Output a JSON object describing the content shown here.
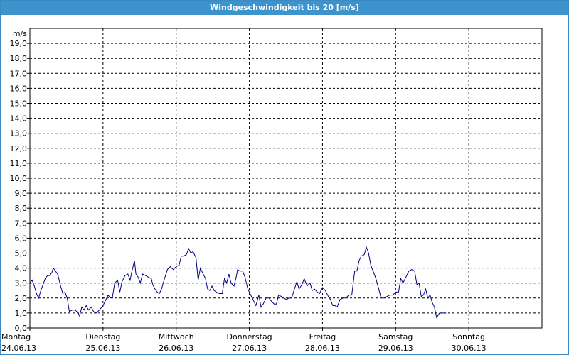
{
  "window": {
    "title": "Windgeschwindigkeit bis 20 [m/s]"
  },
  "chart_data": {
    "type": "line",
    "title": "Windgeschwindigkeit bis 20 [m/s]",
    "ylabel": "m/s",
    "ylim": [
      0,
      20
    ],
    "xlim": [
      0,
      7
    ],
    "grid": true,
    "line_color": "#000080",
    "y_ticks": [
      "0,0",
      "1,0",
      "2,0",
      "3,0",
      "4,0",
      "5,0",
      "6,0",
      "7,0",
      "8,0",
      "9,0",
      "10,0",
      "11,0",
      "12,0",
      "13,0",
      "14,0",
      "15,0",
      "16,0",
      "17,0",
      "18,0",
      "19,0"
    ],
    "x_ticks": [
      {
        "day": "Montag",
        "date": "24.06.13"
      },
      {
        "day": "Dienstag",
        "date": "25.06.13"
      },
      {
        "day": "Mittwoch",
        "date": "26.06.13"
      },
      {
        "day": "Donnerstag",
        "date": "27.06.13"
      },
      {
        "day": "Freitag",
        "date": "28.06.13"
      },
      {
        "day": "Samstag",
        "date": "29.06.13"
      },
      {
        "day": "Sonntag",
        "date": "30.06.13"
      }
    ],
    "series": [
      {
        "points": [
          [
            0.0,
            3.0
          ],
          [
            0.03,
            3.2
          ],
          [
            0.06,
            2.8
          ],
          [
            0.09,
            2.3
          ],
          [
            0.12,
            2.0
          ],
          [
            0.15,
            2.5
          ],
          [
            0.18,
            2.9
          ],
          [
            0.21,
            3.3
          ],
          [
            0.24,
            3.5
          ],
          [
            0.27,
            3.5
          ],
          [
            0.3,
            3.7
          ],
          [
            0.32,
            4.0
          ],
          [
            0.35,
            3.8
          ],
          [
            0.38,
            3.6
          ],
          [
            0.42,
            2.8
          ],
          [
            0.45,
            2.3
          ],
          [
            0.48,
            2.4
          ],
          [
            0.51,
            2.0
          ],
          [
            0.54,
            1.1
          ],
          [
            0.58,
            1.2
          ],
          [
            0.62,
            1.2
          ],
          [
            0.66,
            1.0
          ],
          [
            0.68,
            0.8
          ],
          [
            0.71,
            1.4
          ],
          [
            0.74,
            1.2
          ],
          [
            0.77,
            1.5
          ],
          [
            0.8,
            1.2
          ],
          [
            0.84,
            1.4
          ],
          [
            0.87,
            1.1
          ],
          [
            0.91,
            1.0
          ],
          [
            0.95,
            1.2
          ],
          [
            1.0,
            1.5
          ],
          [
            1.04,
            1.9
          ],
          [
            1.07,
            2.2
          ],
          [
            1.1,
            2.0
          ],
          [
            1.13,
            2.1
          ],
          [
            1.16,
            3.0
          ],
          [
            1.2,
            3.2
          ],
          [
            1.23,
            2.4
          ],
          [
            1.26,
            3.1
          ],
          [
            1.3,
            3.5
          ],
          [
            1.34,
            3.6
          ],
          [
            1.37,
            3.2
          ],
          [
            1.4,
            3.9
          ],
          [
            1.43,
            4.5
          ],
          [
            1.45,
            3.6
          ],
          [
            1.48,
            3.4
          ],
          [
            1.51,
            3.0
          ],
          [
            1.54,
            3.6
          ],
          [
            1.58,
            3.5
          ],
          [
            1.62,
            3.4
          ],
          [
            1.66,
            3.3
          ],
          [
            1.68,
            2.9
          ],
          [
            1.71,
            2.6
          ],
          [
            1.74,
            2.4
          ],
          [
            1.77,
            2.3
          ],
          [
            1.8,
            2.6
          ],
          [
            1.84,
            3.3
          ],
          [
            1.88,
            3.9
          ],
          [
            1.92,
            4.1
          ],
          [
            1.96,
            3.9
          ],
          [
            2.0,
            4.1
          ],
          [
            2.04,
            4.2
          ],
          [
            2.07,
            4.8
          ],
          [
            2.1,
            4.8
          ],
          [
            2.14,
            4.9
          ],
          [
            2.17,
            5.3
          ],
          [
            2.2,
            5.0
          ],
          [
            2.23,
            5.1
          ],
          [
            2.27,
            4.7
          ],
          [
            2.3,
            3.2
          ],
          [
            2.33,
            4.0
          ],
          [
            2.36,
            3.7
          ],
          [
            2.4,
            3.3
          ],
          [
            2.43,
            2.6
          ],
          [
            2.46,
            2.5
          ],
          [
            2.49,
            2.8
          ],
          [
            2.52,
            2.5
          ],
          [
            2.55,
            2.4
          ],
          [
            2.59,
            2.3
          ],
          [
            2.63,
            2.3
          ],
          [
            2.66,
            3.3
          ],
          [
            2.69,
            3.0
          ],
          [
            2.72,
            3.6
          ],
          [
            2.75,
            3.0
          ],
          [
            2.79,
            2.8
          ],
          [
            2.82,
            3.4
          ],
          [
            2.84,
            3.9
          ],
          [
            2.87,
            3.8
          ],
          [
            2.91,
            3.8
          ],
          [
            2.94,
            3.4
          ],
          [
            2.98,
            2.6
          ],
          [
            3.02,
            2.2
          ],
          [
            3.06,
            1.8
          ],
          [
            3.09,
            1.5
          ],
          [
            3.13,
            2.2
          ],
          [
            3.16,
            1.4
          ],
          [
            3.19,
            1.6
          ],
          [
            3.23,
            2.0
          ],
          [
            3.27,
            2.0
          ],
          [
            3.3,
            1.8
          ],
          [
            3.34,
            1.6
          ],
          [
            3.37,
            1.6
          ],
          [
            3.4,
            2.2
          ],
          [
            3.44,
            2.1
          ],
          [
            3.47,
            2.0
          ],
          [
            3.51,
            1.9
          ],
          [
            3.54,
            2.0
          ],
          [
            3.58,
            2.0
          ],
          [
            3.61,
            2.5
          ],
          [
            3.65,
            3.1
          ],
          [
            3.68,
            2.6
          ],
          [
            3.72,
            2.9
          ],
          [
            3.75,
            3.3
          ],
          [
            3.79,
            2.8
          ],
          [
            3.83,
            3.0
          ],
          [
            3.86,
            2.5
          ],
          [
            3.89,
            2.6
          ],
          [
            3.93,
            2.4
          ],
          [
            3.96,
            2.3
          ],
          [
            4.0,
            2.7
          ],
          [
            4.04,
            2.5
          ],
          [
            4.08,
            2.1
          ],
          [
            4.11,
            1.9
          ],
          [
            4.14,
            1.5
          ],
          [
            4.17,
            1.5
          ],
          [
            4.2,
            1.4
          ],
          [
            4.24,
            1.9
          ],
          [
            4.28,
            2.0
          ],
          [
            4.32,
            2.0
          ],
          [
            4.36,
            2.2
          ],
          [
            4.4,
            2.2
          ],
          [
            4.44,
            3.8
          ],
          [
            4.47,
            3.8
          ],
          [
            4.5,
            4.5
          ],
          [
            4.53,
            4.8
          ],
          [
            4.57,
            4.9
          ],
          [
            4.6,
            5.4
          ],
          [
            4.63,
            5.0
          ],
          [
            4.66,
            4.2
          ],
          [
            4.7,
            3.7
          ],
          [
            4.73,
            3.3
          ],
          [
            4.77,
            2.6
          ],
          [
            4.8,
            2.0
          ],
          [
            4.84,
            2.0
          ],
          [
            4.88,
            2.1
          ],
          [
            4.92,
            2.2
          ],
          [
            4.96,
            2.2
          ],
          [
            5.0,
            2.4
          ],
          [
            5.04,
            2.4
          ],
          [
            5.07,
            3.3
          ],
          [
            5.1,
            3.0
          ],
          [
            5.14,
            3.4
          ],
          [
            5.18,
            3.8
          ],
          [
            5.22,
            3.9
          ],
          [
            5.26,
            3.8
          ],
          [
            5.29,
            2.9
          ],
          [
            5.32,
            3.0
          ],
          [
            5.35,
            2.1
          ],
          [
            5.38,
            2.2
          ],
          [
            5.41,
            2.6
          ],
          [
            5.44,
            2.0
          ],
          [
            5.47,
            2.2
          ],
          [
            5.5,
            1.7
          ],
          [
            5.53,
            1.4
          ],
          [
            5.56,
            0.7
          ],
          [
            5.6,
            1.0
          ],
          [
            5.65,
            1.0
          ],
          [
            5.69,
            1.0
          ]
        ]
      }
    ]
  }
}
